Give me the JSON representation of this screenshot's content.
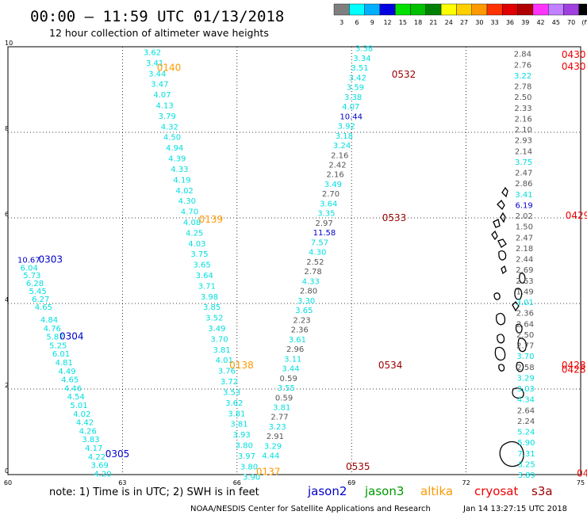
{
  "header": {
    "title": "00:00 – 11:59 UTC 01/13/2018",
    "subtitle": "12 hour collection of altimeter wave heights"
  },
  "color_scale": {
    "bins": [
      {
        "label": "3",
        "color": "#7f7f7f"
      },
      {
        "label": "6",
        "color": "#00ffff"
      },
      {
        "label": "9",
        "color": "#00b0ff"
      },
      {
        "label": "12",
        "color": "#0000e0"
      },
      {
        "label": "15",
        "color": "#00e000"
      },
      {
        "label": "18",
        "color": "#00c000"
      },
      {
        "label": "21",
        "color": "#008000"
      },
      {
        "label": "24",
        "color": "#ffff00"
      },
      {
        "label": "27",
        "color": "#ffd000"
      },
      {
        "label": "30",
        "color": "#ff9900"
      },
      {
        "label": "33",
        "color": "#ff3300"
      },
      {
        "label": "36",
        "color": "#e00000"
      },
      {
        "label": "39",
        "color": "#b00000"
      },
      {
        "label": "42",
        "color": "#ff33ff"
      },
      {
        "label": "45",
        "color": "#c080ff"
      },
      {
        "label": "70",
        "color": "#a040e0"
      },
      {
        "label": "(ft)",
        "color": "#000000"
      }
    ]
  },
  "axes": {
    "x_ticks": [
      "60",
      "63",
      "66",
      "69",
      "72",
      "75"
    ],
    "y_ticks": [
      "0",
      "2",
      "4",
      "6",
      "8",
      "10"
    ],
    "x_range": [
      60,
      75
    ],
    "y_range": [
      0,
      10
    ]
  },
  "colors": {
    "gray": "#555555",
    "cyan": "#00dede",
    "blue": "#0000cc",
    "jason2": "#0000cc",
    "jason3": "#009900",
    "altika": "#ff9900",
    "cryosat": "#ee0000",
    "s3a": "#990000"
  },
  "passes": [
    {
      "label": "0140",
      "lon": 63.9,
      "lat": 9.53,
      "color": "altika"
    },
    {
      "label": "0139",
      "lon": 65.0,
      "lat": 5.98,
      "color": "altika"
    },
    {
      "label": "0138",
      "lon": 65.8,
      "lat": 2.57,
      "color": "altika"
    },
    {
      "label": "0137",
      "lon": 66.5,
      "lat": 0.08,
      "color": "altika"
    },
    {
      "label": "0303",
      "lon": 60.8,
      "lat": 5.05,
      "color": "jason2"
    },
    {
      "label": "0304",
      "lon": 61.35,
      "lat": 3.25,
      "color": "jason2"
    },
    {
      "label": "0305",
      "lon": 62.55,
      "lat": 0.5,
      "color": "jason2"
    },
    {
      "label": "0532",
      "lon": 70.05,
      "lat": 9.37,
      "color": "s3a"
    },
    {
      "label": "0533",
      "lon": 69.8,
      "lat": 6.02,
      "color": "s3a"
    },
    {
      "label": "0534",
      "lon": 69.7,
      "lat": 2.57,
      "color": "s3a"
    },
    {
      "label": "0535",
      "lon": 68.85,
      "lat": 0.2,
      "color": "s3a"
    },
    {
      "label": "0430",
      "lon": 74.5,
      "lat": 9.83,
      "color": "cryosat"
    },
    {
      "label": "0430",
      "lon": 74.5,
      "lat": 9.56,
      "color": "cryosat"
    },
    {
      "label": "0429",
      "lon": 74.6,
      "lat": 6.07,
      "color": "cryosat"
    },
    {
      "label": "0428",
      "lon": 74.5,
      "lat": 2.57,
      "color": "cryosat"
    },
    {
      "label": "0428",
      "lon": 74.5,
      "lat": 2.47,
      "color": "cryosat"
    },
    {
      "label": "0427",
      "lon": 74.9,
      "lat": 0.05,
      "color": "cryosat"
    }
  ],
  "tracks": [
    {
      "name": "altika-0137-0140",
      "start_lon": 63.55,
      "end_lon": 66.15,
      "start_lat": 9.88,
      "end_lat": -0.05,
      "values": [
        "3.62",
        "3.41",
        "3.44",
        "3.47",
        "4.07",
        "4.13",
        "3.79",
        "4.32",
        "4.50",
        "4.94",
        "4.39",
        "4.33",
        "4.19",
        "4.02",
        "4.30",
        "4.70",
        "4.08",
        "4.25",
        "4.03",
        "3.75",
        "3.65",
        "3.64",
        "3.71",
        "3.98",
        "3.85",
        "3.52",
        "3.49",
        "3.70",
        "3.81",
        "4.01",
        "3.76",
        "3.72",
        "3.53",
        "3.62",
        "3.81",
        "3.81",
        "3.93",
        "3.80",
        "3.97",
        "3.80",
        "3.90"
      ],
      "colors": [
        "cyan",
        "cyan",
        "cyan",
        "cyan",
        "cyan",
        "cyan",
        "cyan",
        "cyan",
        "cyan",
        "cyan",
        "cyan",
        "cyan",
        "cyan",
        "cyan",
        "cyan",
        "cyan",
        "cyan",
        "cyan",
        "cyan",
        "cyan",
        "cyan",
        "cyan",
        "cyan",
        "cyan",
        "cyan",
        "cyan",
        "cyan",
        "cyan",
        "cyan",
        "cyan",
        "cyan",
        "cyan",
        "cyan",
        "cyan",
        "cyan",
        "cyan",
        "cyan",
        "cyan",
        "cyan",
        "cyan",
        "cyan"
      ]
    },
    {
      "name": "jason2-upper",
      "start_lon": 60.25,
      "end_lon": 60.7,
      "start_lat": 5.03,
      "end_lat": 3.93,
      "values": [
        "10.67",
        "6.04",
        "5.73",
        "6.28",
        "5.45",
        "6.27",
        "4.65"
      ],
      "colors": [
        "blue",
        "cyan",
        "cyan",
        "cyan",
        "cyan",
        "cyan",
        "cyan"
      ]
    },
    {
      "name": "jason2-lower",
      "start_lon": 60.85,
      "end_lon": 62.25,
      "start_lat": 3.63,
      "end_lat": 0.03,
      "values": [
        "4.84",
        "4.76",
        "5.87",
        "5.25",
        "6.01",
        "4.81",
        "4.49",
        "4.65",
        "4.46",
        "4.54",
        "5.01",
        "4.02",
        "4.42",
        "4.26",
        "3.83",
        "4.17",
        "4.22",
        "3.69",
        "4.20"
      ],
      "colors": [
        "cyan",
        "cyan",
        "cyan",
        "cyan",
        "cyan",
        "cyan",
        "cyan",
        "cyan",
        "cyan",
        "cyan",
        "cyan",
        "cyan",
        "cyan",
        "cyan",
        "cyan",
        "cyan",
        "cyan",
        "cyan",
        "cyan"
      ]
    },
    {
      "name": "s3a-0532-0535",
      "start_lon": 69.1,
      "end_lon": 66.65,
      "start_lat": 9.97,
      "end_lat": 0.45,
      "values": [
        "3.38",
        "3.34",
        "3.51",
        "3.42",
        "3.59",
        "3.38",
        "4.07",
        "10.44",
        "3.92",
        "3.18",
        "3.24",
        "2.16",
        "2.42",
        "2.16",
        "3.49",
        "2.70",
        "3.64",
        "3.35",
        "2.97",
        "11.58",
        "7.57",
        "4.30",
        "2.52",
        "2.78",
        "4.33",
        "2.80",
        "3.30",
        "3.65",
        "2.23",
        "2.36",
        "3.61",
        "2.96",
        "3.11",
        "3.44",
        "0.59",
        "3.55",
        "0.59",
        "3.81",
        "2.77",
        "3.23",
        "2.91",
        "3.29",
        "4.44"
      ],
      "colors": [
        "cyan",
        "cyan",
        "cyan",
        "cyan",
        "cyan",
        "cyan",
        "cyan",
        "blue",
        "cyan",
        "cyan",
        "cyan",
        "gray",
        "gray",
        "gray",
        "cyan",
        "gray",
        "cyan",
        "cyan",
        "gray",
        "blue",
        "cyan",
        "cyan",
        "gray",
        "gray",
        "cyan",
        "gray",
        "cyan",
        "cyan",
        "gray",
        "gray",
        "cyan",
        "gray",
        "cyan",
        "cyan",
        "gray",
        "cyan",
        "gray",
        "cyan",
        "gray",
        "cyan",
        "gray",
        "cyan",
        "cyan"
      ]
    },
    {
      "name": "cryosat-0427-0430",
      "start_lon": 73.25,
      "end_lon": 73.35,
      "start_lat": 9.84,
      "end_lat": 0.0,
      "values": [
        "2.84",
        "2.76",
        "3.22",
        "2.78",
        "2.50",
        "2.33",
        "2.16",
        "2.10",
        "2.93",
        "2.14",
        "3.75",
        "2.47",
        "2.86",
        "3.41",
        "6.19",
        "2.02",
        "1.50",
        "2.47",
        "2.18",
        "2.44",
        "2.69",
        "2.63",
        "1.49",
        "3.01",
        "2.36",
        "2.64",
        "2.50",
        "2.77",
        "3.70",
        "2.58",
        "3.29",
        "3.03",
        "4.34",
        "2.64",
        "2.24",
        "5.24",
        "5.90",
        "7.31",
        "3.25",
        "3.89"
      ],
      "colors": [
        "gray",
        "gray",
        "cyan",
        "gray",
        "gray",
        "gray",
        "gray",
        "gray",
        "gray",
        "gray",
        "cyan",
        "gray",
        "gray",
        "cyan",
        "blue",
        "gray",
        "gray",
        "gray",
        "gray",
        "gray",
        "gray",
        "gray",
        "gray",
        "cyan",
        "gray",
        "gray",
        "gray",
        "gray",
        "cyan",
        "gray",
        "cyan",
        "cyan",
        "cyan",
        "gray",
        "gray",
        "cyan",
        "cyan",
        "cyan",
        "cyan",
        "cyan"
      ]
    }
  ],
  "legend": {
    "note": "note:  1) Time is in UTC;  2) SWH is in feet",
    "sources": [
      {
        "label": "jason2",
        "color": "jason2"
      },
      {
        "label": "jason3",
        "color": "jason3"
      },
      {
        "label": "altika",
        "color": "altika"
      },
      {
        "label": "cryosat",
        "color": "cryosat"
      },
      {
        "label": "s3a",
        "color": "s3a"
      }
    ]
  },
  "footer": {
    "credit": "NOAA/NESDIS Center for Satellite Applications and Research",
    "timestamp": "Jan 14 13:27:15 UTC 2018"
  }
}
